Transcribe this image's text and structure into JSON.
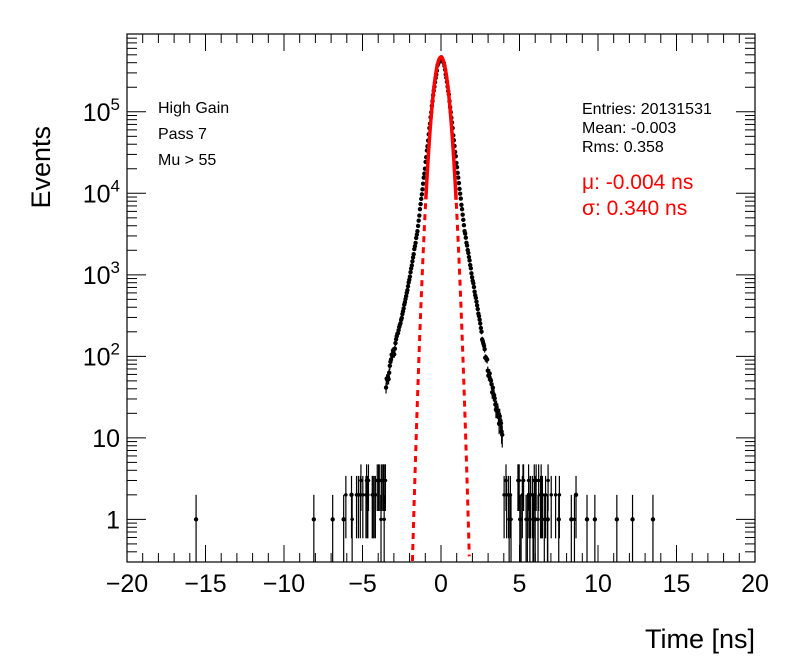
{
  "chart_data": {
    "type": "scatter",
    "title": "",
    "xlabel": "Time [ns]",
    "ylabel": "Events",
    "xlim": [
      -20,
      20
    ],
    "ylim": [
      0.3,
      900000
    ],
    "yscale": "log",
    "x_ticks": [
      -20,
      -15,
      -10,
      -5,
      0,
      5,
      10,
      15,
      20
    ],
    "x_tick_labels": [
      "−20",
      "−15",
      "−10",
      "−5",
      "0",
      "5",
      "10",
      "15",
      "20"
    ],
    "y_ticks": [
      {
        "value": 1,
        "base": "1",
        "exp": ""
      },
      {
        "value": 10,
        "base": "10",
        "exp": ""
      },
      {
        "value": 100,
        "base": "10",
        "exp": "2"
      },
      {
        "value": 1000,
        "base": "10",
        "exp": "3"
      },
      {
        "value": 10000,
        "base": "10",
        "exp": "4"
      },
      {
        "value": 100000,
        "base": "10",
        "exp": "5"
      }
    ],
    "labels_left": [
      "High Gain",
      "Pass 7",
      "Mu > 55"
    ],
    "stats": {
      "entries": "Entries: 20131531",
      "mean": "Mean: -0.003",
      "rms": "Rms: 0.358"
    },
    "fit_results": {
      "mu": "μ: -0.004 ns",
      "sigma": "σ: 0.340 ns"
    },
    "fit": {
      "type": "gaussian",
      "mean": -0.004,
      "sigma": 0.34,
      "amplitude": 470000,
      "color": "#ff0000",
      "style": "dashed"
    },
    "series": [
      {
        "name": "Events",
        "color": "#000000",
        "core_profile": [
          [
            -3.5,
            45
          ],
          [
            -3.0,
            120
          ],
          [
            -2.5,
            300
          ],
          [
            -2.0,
            900
          ],
          [
            -1.5,
            3500
          ],
          [
            -1.0,
            22000
          ],
          [
            -0.5,
            160000
          ],
          [
            -0.2,
            390000
          ],
          [
            0,
            470000
          ],
          [
            0.2,
            390000
          ],
          [
            0.5,
            160000
          ],
          [
            1.0,
            22000
          ],
          [
            1.5,
            3500
          ],
          [
            2.0,
            900
          ],
          [
            2.5,
            250
          ],
          [
            3.0,
            70
          ],
          [
            3.5,
            25
          ],
          [
            4.0,
            10
          ]
        ],
        "isolated_points": [
          [
            -15.6,
            1
          ],
          [
            -8.1,
            1
          ],
          [
            -6.9,
            1
          ],
          [
            -6.2,
            1
          ],
          [
            -5.7,
            2
          ],
          [
            5.6,
            2
          ],
          [
            6.0,
            1
          ],
          [
            6.4,
            2
          ],
          [
            6.8,
            1
          ],
          [
            7.5,
            1
          ],
          [
            8.3,
            1
          ],
          [
            8.6,
            2
          ],
          [
            9.3,
            1
          ],
          [
            9.8,
            1
          ],
          [
            11.2,
            1
          ],
          [
            12.2,
            1
          ],
          [
            13.5,
            1
          ]
        ]
      }
    ]
  }
}
